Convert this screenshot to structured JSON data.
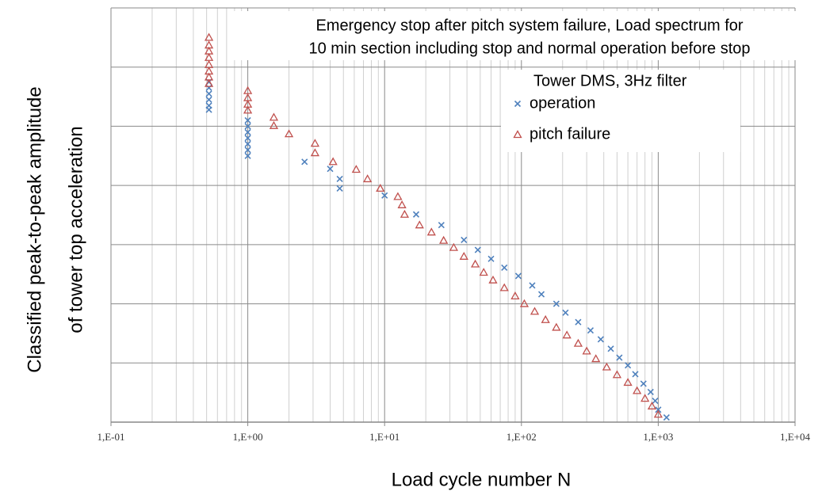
{
  "chart_data": {
    "type": "scatter",
    "title": [
      "Emergency stop after pitch system failure, Load spectrum for",
      "10 min section including stop and normal operation before stop"
    ],
    "xlabel": "Load cycle number  N",
    "ylabel": [
      "Classified peak-to-peak amplitude",
      "of tower top acceleration"
    ],
    "legend_title": "Tower DMS, 3Hz filter",
    "xscale": "log",
    "xlim": [
      0.1,
      10000
    ],
    "xticks": [
      {
        "value": 0.1,
        "label": "1,E-01"
      },
      {
        "value": 1,
        "label": "1,E+00"
      },
      {
        "value": 10,
        "label": "1,E+01"
      },
      {
        "value": 100,
        "label": "1,E+02"
      },
      {
        "value": 1000,
        "label": "1,E+03"
      },
      {
        "value": 10000,
        "label": "1,E+04"
      }
    ],
    "ylim": [
      0,
      7
    ],
    "yticks": [
      0,
      1,
      2,
      3,
      4,
      5,
      6,
      7
    ],
    "grid": true,
    "series": [
      {
        "name": "operation",
        "color": "#4f81bd",
        "marker": "x",
        "x": [
          0.52,
          0.52,
          0.52,
          0.52,
          0.52,
          0.52,
          1,
          1,
          1,
          1,
          1,
          1,
          1,
          2.6,
          4,
          4.7,
          4.7,
          10,
          17,
          26,
          38,
          48,
          60,
          75,
          95,
          120,
          140,
          180,
          210,
          260,
          320,
          380,
          450,
          520,
          600,
          680,
          780,
          880,
          950,
          1000,
          1150
        ],
        "values": [
          5.75,
          5.65,
          5.55,
          5.45,
          5.35,
          5.28,
          5.1,
          5.0,
          4.9,
          4.8,
          4.7,
          4.6,
          4.5,
          4.4,
          4.28,
          4.11,
          3.95,
          3.83,
          3.51,
          3.33,
          3.08,
          2.91,
          2.76,
          2.61,
          2.47,
          2.31,
          2.16,
          2.0,
          1.85,
          1.69,
          1.55,
          1.4,
          1.24,
          1.09,
          0.96,
          0.81,
          0.65,
          0.51,
          0.36,
          0.21,
          0.08
        ]
      },
      {
        "name": "pitch failure",
        "color": "#c0504d",
        "marker": "triangle",
        "x": [
          0.52,
          0.52,
          0.52,
          0.52,
          0.52,
          0.52,
          0.52,
          0.52,
          1,
          1,
          1,
          1,
          1.55,
          1.55,
          2,
          3.1,
          3.1,
          4.2,
          6.2,
          7.5,
          9.3,
          12.5,
          13.4,
          14,
          18,
          22,
          27,
          32,
          38,
          46,
          53,
          62,
          75,
          90,
          105,
          125,
          150,
          180,
          215,
          260,
          300,
          350,
          420,
          500,
          600,
          700,
          800,
          900,
          1000
        ],
        "values": [
          6.5,
          6.37,
          6.27,
          6.16,
          6.04,
          5.93,
          5.83,
          5.72,
          5.6,
          5.48,
          5.37,
          5.27,
          5.15,
          5.01,
          4.87,
          4.71,
          4.55,
          4.4,
          4.27,
          4.11,
          3.95,
          3.81,
          3.67,
          3.51,
          3.33,
          3.21,
          3.07,
          2.95,
          2.8,
          2.67,
          2.53,
          2.4,
          2.27,
          2.13,
          2.0,
          1.87,
          1.73,
          1.6,
          1.47,
          1.33,
          1.2,
          1.07,
          0.93,
          0.8,
          0.67,
          0.53,
          0.4,
          0.27,
          0.13
        ]
      }
    ]
  }
}
